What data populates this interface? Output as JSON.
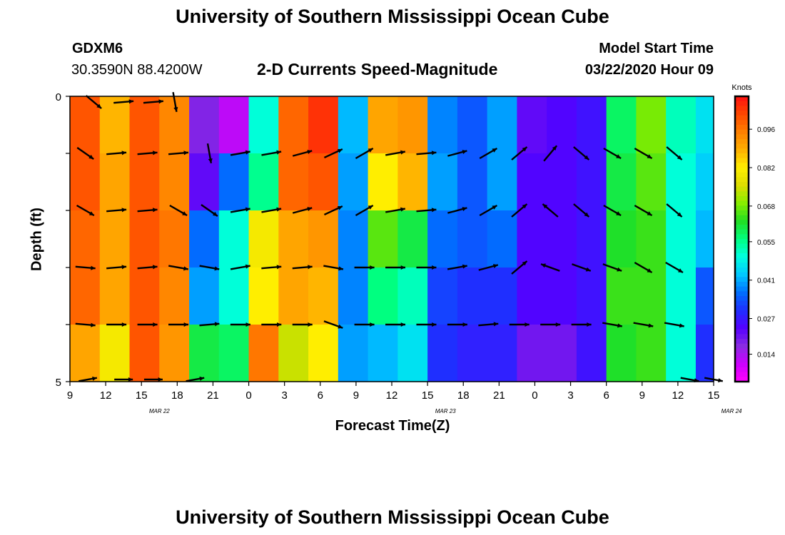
{
  "header": {
    "top_title": "University of Southern Mississippi Ocean Cube",
    "bottom_title": "University of Southern Mississippi Ocean Cube",
    "station": "GDXM6",
    "coords": "30.3590N 88.4200W",
    "plot_title": "2-D Currents Speed-Magnitude",
    "start_label": "Model Start Time",
    "start_value": "03/22/2020 Hour 09"
  },
  "colorbar": {
    "unit": "Knots",
    "ticks": [
      "0.096",
      "0.082",
      "0.068",
      "0.055",
      "0.041",
      "0.027",
      "0.014"
    ],
    "range": [
      0.004,
      0.108
    ],
    "colors": [
      "#ff00ff",
      "#cc00ff",
      "#8a2be2",
      "#5500ff",
      "#1f2fff",
      "#0070ff",
      "#00c8ff",
      "#00ffe0",
      "#00ff80",
      "#22dd22",
      "#88ee00",
      "#dddd00",
      "#ffee00",
      "#ffb000",
      "#ff8000",
      "#ff4800",
      "#ff1010"
    ]
  },
  "chart_data": {
    "type": "heatmap",
    "title": "2-D Currents Speed-Magnitude",
    "xlabel": "Forecast Time(Z)",
    "ylabel": "Depth (ft)",
    "unit": "Knots",
    "x_tick_labels": [
      "9",
      "12",
      "15",
      "18",
      "21",
      "0",
      "3",
      "6",
      "9",
      "12",
      "15",
      "18",
      "21",
      "0",
      "3",
      "6",
      "9",
      "12",
      "15"
    ],
    "date_labels": [
      {
        "label": "MAR 22",
        "at_hour": 16.5
      },
      {
        "label": "MAR 23",
        "at_hour": 40.5
      },
      {
        "label": "MAR 24",
        "at_hour": 64.5
      }
    ],
    "y_tick_labels": [
      "0",
      "5"
    ],
    "hour_range": [
      9,
      63
    ],
    "depth_range": [
      0,
      5
    ],
    "depth_levels": 5,
    "speed_range": [
      0.004,
      0.108
    ],
    "hours": [
      9,
      11.5,
      14,
      16.5,
      19,
      21.5,
      24,
      26.5,
      29,
      31.5,
      34,
      36.5,
      39,
      41.5,
      44,
      46.5,
      49,
      51.5,
      54,
      56.5,
      59,
      61.5
    ],
    "speed_knots": [
      [
        0.1,
        0.088,
        0.1,
        0.094,
        0.018,
        0.012,
        0.05,
        0.098,
        0.104,
        0.042,
        0.09,
        0.092,
        0.038,
        0.034,
        0.04,
        0.022,
        0.024,
        0.026,
        0.058,
        0.068,
        0.052,
        0.046
      ],
      [
        0.1,
        0.09,
        0.1,
        0.094,
        0.022,
        0.036,
        0.055,
        0.098,
        0.1,
        0.04,
        0.082,
        0.088,
        0.04,
        0.034,
        0.04,
        0.024,
        0.024,
        0.026,
        0.06,
        0.066,
        0.05,
        0.044
      ],
      [
        0.098,
        0.09,
        0.1,
        0.096,
        0.036,
        0.05,
        0.08,
        0.09,
        0.092,
        0.038,
        0.066,
        0.06,
        0.036,
        0.034,
        0.036,
        0.024,
        0.024,
        0.026,
        0.062,
        0.064,
        0.05,
        0.042
      ],
      [
        0.098,
        0.09,
        0.1,
        0.094,
        0.04,
        0.05,
        0.082,
        0.09,
        0.088,
        0.038,
        0.056,
        0.052,
        0.032,
        0.03,
        0.03,
        0.024,
        0.024,
        0.026,
        0.064,
        0.064,
        0.05,
        0.034
      ],
      [
        0.09,
        0.08,
        0.1,
        0.092,
        0.06,
        0.058,
        0.096,
        0.074,
        0.082,
        0.04,
        0.042,
        0.046,
        0.03,
        0.028,
        0.028,
        0.02,
        0.02,
        0.026,
        0.062,
        0.064,
        0.05,
        0.03
      ]
    ]
  }
}
